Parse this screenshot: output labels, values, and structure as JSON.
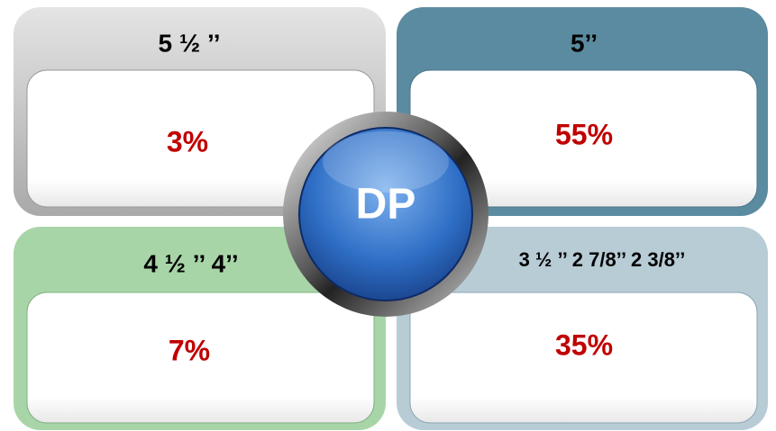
{
  "center": "DP",
  "quadrants": [
    {
      "title": "5 ½ ’’",
      "value": "3%"
    },
    {
      "title": "5’’",
      "value": "55%"
    },
    {
      "title": "4 ½ ’’ 4’’",
      "value": "7%"
    },
    {
      "title": "3 ½ ’’ 2 7/8’’ 2 3/8’’",
      "value": "35%"
    }
  ]
}
